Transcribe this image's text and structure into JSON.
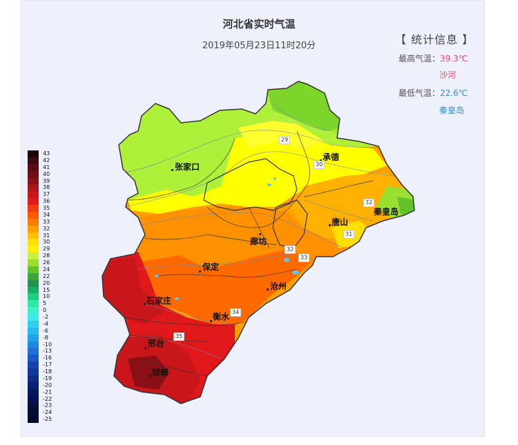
{
  "title": "河北省实时气温",
  "subtitle": "2019年05月23日11时20分",
  "stats": {
    "heading": "【 统计信息 】",
    "max_label": "最高气温：",
    "max_value": "39.3℃",
    "max_city": "沙河",
    "min_label": "最低气温：",
    "min_value": "22.6℃",
    "min_city": "秦皇岛"
  },
  "legend": {
    "labels": [
      "43",
      "42",
      "41",
      "40",
      "39",
      "38",
      "37",
      "36",
      "35",
      "34",
      "33",
      "32",
      "31",
      "30",
      "29",
      "28",
      "26",
      "24",
      "22",
      "20",
      "15",
      "10",
      "5",
      "0",
      "-2",
      "-4",
      "-6",
      "-8",
      "-10",
      "-13",
      "-16",
      "-17",
      "-18",
      "-19",
      "-20",
      "-21",
      "-22",
      "-23",
      "-24",
      "-25"
    ],
    "colors": [
      "#1a0508",
      "#3a0a10",
      "#5a0d14",
      "#6e0f18",
      "#8a1018",
      "#a81418",
      "#c8161a",
      "#e0181a",
      "#f03a10",
      "#ff5a00",
      "#ff7a00",
      "#ffa000",
      "#ffc000",
      "#ffe000",
      "#fff000",
      "#c8f03c",
      "#9ae030",
      "#60c428",
      "#38a83c",
      "#20904a",
      "#18b060",
      "#20d080",
      "#30e8a0",
      "#40f0c8",
      "#40e8e8",
      "#30d0f0",
      "#28b8f0",
      "#20a0e8",
      "#1e88e0",
      "#1c70d8",
      "#1858c8",
      "#1444b0",
      "#10369a",
      "#0c2a84",
      "#0a2070",
      "#08185e",
      "#06124e",
      "#050e40",
      "#040a34",
      "#030828"
    ]
  },
  "cities": [
    {
      "name": "张家口"
    },
    {
      "name": "承德"
    },
    {
      "name": "秦皇岛"
    },
    {
      "name": "唐山"
    },
    {
      "name": "廊坊"
    },
    {
      "name": "保定"
    },
    {
      "name": "沧州"
    },
    {
      "name": "石家庄"
    },
    {
      "name": "衡水"
    },
    {
      "name": "邢台"
    },
    {
      "name": "邯郸"
    }
  ],
  "isotherm_labels": [
    "29",
    "30",
    "32",
    "31",
    "32",
    "33",
    "34",
    "35"
  ],
  "colors": {
    "max_accent": "#e8456b",
    "min_accent": "#2f8fd8",
    "panel_bg": "#eef1fb"
  }
}
